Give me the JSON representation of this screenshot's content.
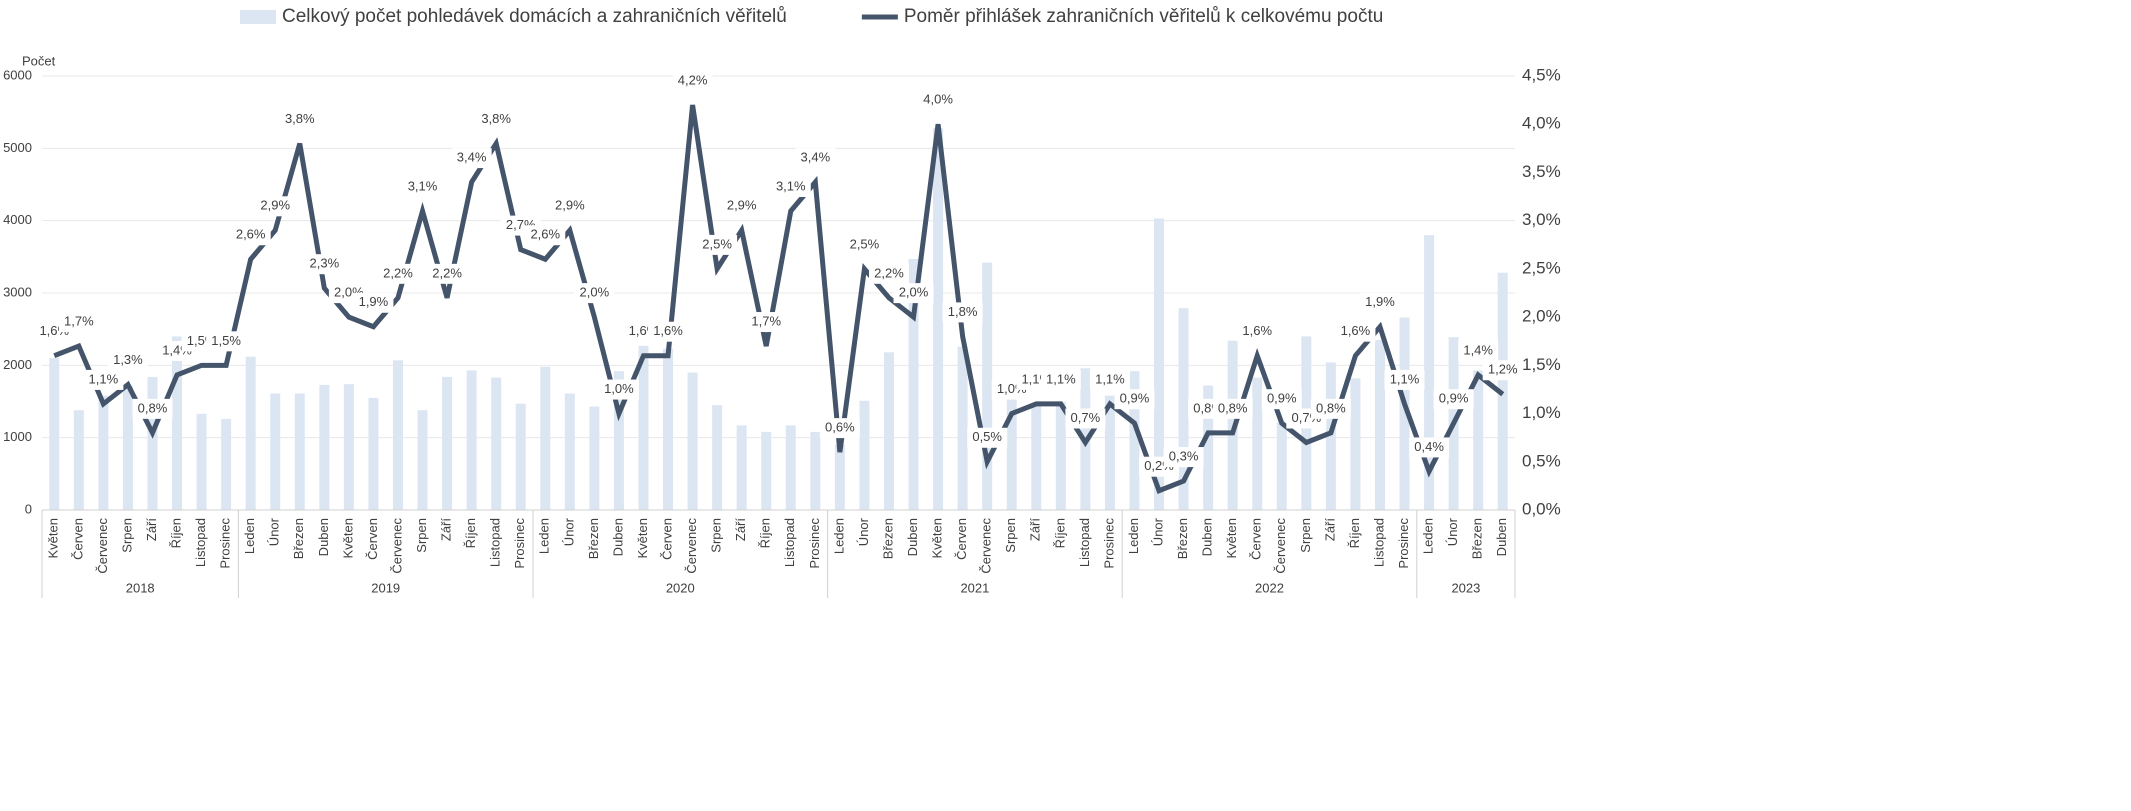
{
  "chart_data": {
    "type": "combo",
    "y_axis_label": "Počet",
    "categories": [
      "Květen",
      "Červen",
      "Červenec",
      "Srpen",
      "Září",
      "Říjen",
      "Listopad",
      "Prosinec",
      "Leden",
      "Únor",
      "Březen",
      "Duben",
      "Květen",
      "Červen",
      "Červenec",
      "Srpen",
      "Září",
      "Říjen",
      "Listopad",
      "Prosinec",
      "Leden",
      "Únor",
      "Březen",
      "Duben",
      "Květen",
      "Červen",
      "Červenec",
      "Srpen",
      "Září",
      "Říjen",
      "Listopad",
      "Prosinec",
      "Leden",
      "Únor",
      "Březen",
      "Duben",
      "Květen",
      "Červen",
      "Červenec",
      "Srpen",
      "Září",
      "Říjen",
      "Listopad",
      "Prosinec",
      "Leden",
      "Únor",
      "Březen",
      "Duben",
      "Květen",
      "Červen",
      "Červenec",
      "Srpen",
      "Září",
      "Říjen",
      "Listopad",
      "Prosinec",
      "Leden",
      "Únor",
      "Březen",
      "Duben"
    ],
    "category_years": [
      "2018",
      "2018",
      "2018",
      "2018",
      "2018",
      "2018",
      "2018",
      "2018",
      "2019",
      "2019",
      "2019",
      "2019",
      "2019",
      "2019",
      "2019",
      "2019",
      "2019",
      "2019",
      "2019",
      "2019",
      "2020",
      "2020",
      "2020",
      "2020",
      "2020",
      "2020",
      "2020",
      "2020",
      "2020",
      "2020",
      "2020",
      "2020",
      "2021",
      "2021",
      "2021",
      "2021",
      "2021",
      "2021",
      "2021",
      "2021",
      "2021",
      "2021",
      "2021",
      "2021",
      "2022",
      "2022",
      "2022",
      "2022",
      "2022",
      "2022",
      "2022",
      "2022",
      "2022",
      "2022",
      "2022",
      "2022",
      "2023",
      "2023",
      "2023",
      "2023"
    ],
    "series": [
      {
        "name": "Celkový počet pohledávek domácích a zahraničních věřitelů",
        "type": "bar",
        "color": "#dce6f2",
        "values": [
          2100,
          1380,
          1580,
          1720,
          1840,
          2400,
          1330,
          1260,
          2120,
          1610,
          1610,
          1730,
          1740,
          1550,
          2070,
          1380,
          1840,
          1930,
          1830,
          1470,
          1980,
          1610,
          1430,
          1920,
          2270,
          2230,
          1900,
          1450,
          1170,
          1080,
          1170,
          1080,
          900,
          1510,
          2180,
          3470,
          5280,
          2260,
          3420,
          1540,
          1480,
          1490,
          1960,
          1580,
          1920,
          4030,
          2790,
          1720,
          2340,
          1830,
          1210,
          2400,
          2040,
          1820,
          2350,
          2660,
          3800,
          2390,
          1930,
          3280
        ]
      },
      {
        "name": "Poměr přihlášek zahraničních věřitelů k celkovému počtu",
        "type": "line",
        "axis": "y2",
        "color": "#44546a",
        "values": [
          1.6,
          1.7,
          1.1,
          1.3,
          0.8,
          1.4,
          1.5,
          1.5,
          2.6,
          2.9,
          3.8,
          2.3,
          2.0,
          1.9,
          2.2,
          3.1,
          2.2,
          3.4,
          3.8,
          2.7,
          2.6,
          2.9,
          2.0,
          1.0,
          1.6,
          1.6,
          4.2,
          2.5,
          2.9,
          1.7,
          3.1,
          3.4,
          0.6,
          2.5,
          2.2,
          2.0,
          4.0,
          1.8,
          0.5,
          1.0,
          1.1,
          1.1,
          0.7,
          1.1,
          0.9,
          0.2,
          0.3,
          0.8,
          0.8,
          1.6,
          0.9,
          0.7,
          0.8,
          1.6,
          1.9,
          1.1,
          0.4,
          0.9,
          1.4,
          1.2
        ],
        "value_labels": [
          "1,6%",
          "1,7%",
          "1,1%",
          "1,3%",
          "0,8%",
          "1,4%",
          "1,5%",
          "1,5%",
          "2,6%",
          "2,9%",
          "3,8%",
          "2,3%",
          "2,0%",
          "1,9%",
          "2,2%",
          "3,1%",
          "2,2%",
          "3,4%",
          "3,8%",
          "2,7%",
          "2,6%",
          "2,9%",
          "2,0%",
          "1,0%",
          "1,6%",
          "1,6%",
          "4,2%",
          "2,5%",
          "2,9%",
          "1,7%",
          "3,1%",
          "3,4%",
          "0,6%",
          "2,5%",
          "2,2%",
          "2,0%",
          "4,0%",
          "1,8%",
          "0,5%",
          "1,0%",
          "1,1%",
          "1,1%",
          "0,7%",
          "1,1%",
          "0,9%",
          "0,2%",
          "0,3%",
          "0,8%",
          "0,8%",
          "1,6%",
          "0,9%",
          "0,7%",
          "0,8%",
          "1,6%",
          "1,9%",
          "1,1%",
          "0,4%",
          "0,9%",
          "1,4%",
          "1,2%"
        ]
      }
    ],
    "ylim": [
      0,
      6000
    ],
    "yticks": [
      0,
      1000,
      2000,
      3000,
      4000,
      5000,
      6000
    ],
    "y2lim": [
      0,
      4.5
    ],
    "y2ticks": [
      {
        "value": 0,
        "label": "0,0%"
      },
      {
        "value": 0.5,
        "label": "0,5%"
      },
      {
        "value": 1,
        "label": "1,0%"
      },
      {
        "value": 1.5,
        "label": "1,5%"
      },
      {
        "value": 2,
        "label": "2,0%"
      },
      {
        "value": 2.5,
        "label": "2,5%"
      },
      {
        "value": 3,
        "label": "3,0%"
      },
      {
        "value": 3.5,
        "label": "3,5%"
      },
      {
        "value": 4,
        "label": "4,0%"
      },
      {
        "value": 4.5,
        "label": "4,5%"
      }
    ],
    "grid": true,
    "legend": "top"
  }
}
